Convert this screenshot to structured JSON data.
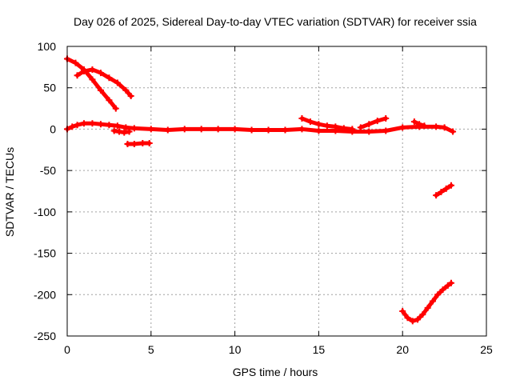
{
  "chart_data": {
    "type": "scatter",
    "title": "Day 026 of 2025, Sidereal Day-to-day VTEC variation (SDTVAR) for receiver ssia",
    "xlabel": "GPS time / hours",
    "ylabel": "SDTVAR / TECUs",
    "xlim": [
      0,
      25
    ],
    "ylim": [
      -250,
      100
    ],
    "xticks": [
      0,
      5,
      10,
      15,
      20,
      25
    ],
    "yticks": [
      -250,
      -200,
      -150,
      -100,
      -50,
      0,
      50,
      100
    ],
    "grid": true,
    "color": "#ff0000",
    "series": [
      {
        "x": [
          0.0,
          0.5,
          1.0,
          1.5,
          2.0,
          2.5,
          2.9
        ],
        "y": [
          85,
          80,
          72,
          60,
          47,
          35,
          25
        ]
      },
      {
        "x": [
          0.6,
          1.0,
          1.5,
          2.0,
          2.5,
          3.0,
          3.5,
          3.8
        ],
        "y": [
          65,
          70,
          72,
          68,
          62,
          56,
          47,
          40
        ]
      },
      {
        "x": [
          0.0,
          0.3,
          0.6,
          1.0,
          1.5,
          2.0,
          2.5,
          3.0,
          3.5,
          4.0,
          5.0,
          6.0,
          7.0,
          8.0,
          9.0,
          10.0,
          11.0,
          12.0,
          13.0,
          14.0,
          15.0,
          16.0,
          17.0,
          18.0,
          19.0,
          20.0,
          21.0,
          22.0,
          22.5,
          23.0
        ],
        "y": [
          0,
          3,
          5,
          7,
          7,
          6,
          5,
          4,
          2,
          1,
          0,
          -1,
          0,
          0,
          0,
          0,
          -1,
          -1,
          -1,
          0,
          -2,
          -2,
          -3,
          -3,
          -2,
          2,
          3,
          3,
          2,
          -3
        ]
      },
      {
        "x": [
          2.8,
          3.1,
          3.4,
          3.7
        ],
        "y": [
          -2,
          -3,
          -4,
          -3
        ]
      },
      {
        "x": [
          3.6,
          4.0,
          4.5,
          4.9
        ],
        "y": [
          -18,
          -18,
          -17,
          -17
        ]
      },
      {
        "x": [
          14.0,
          14.5,
          15.0,
          15.5,
          16.0,
          16.5,
          17.0
        ],
        "y": [
          13,
          9,
          6,
          4,
          3,
          1,
          0
        ]
      },
      {
        "x": [
          17.5,
          18.0,
          18.5,
          19.0
        ],
        "y": [
          2,
          6,
          10,
          13
        ]
      },
      {
        "x": [
          20.7,
          21.0,
          21.3
        ],
        "y": [
          9,
          6,
          4
        ]
      },
      {
        "x": [
          22.0,
          22.3,
          22.6,
          22.9
        ],
        "y": [
          -80,
          -76,
          -72,
          -68
        ]
      },
      {
        "x": [
          20.0,
          20.3,
          20.6,
          20.9,
          21.2,
          21.5,
          21.8,
          22.1,
          22.4,
          22.7,
          22.9
        ],
        "y": [
          -220,
          -228,
          -232,
          -230,
          -224,
          -216,
          -208,
          -200,
          -194,
          -189,
          -186
        ]
      }
    ]
  }
}
